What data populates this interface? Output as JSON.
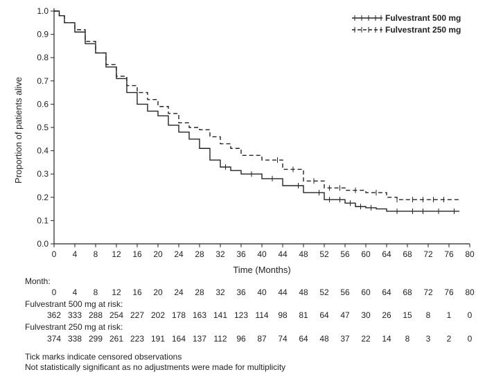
{
  "chart_data": {
    "type": "line",
    "title": "",
    "xlabel": "Time (Months)",
    "ylabel": "Proportion of patients alive",
    "xlim": [
      0,
      80
    ],
    "ylim": [
      0,
      1.0
    ],
    "x_ticks": [
      "0",
      "4",
      "8",
      "12",
      "16",
      "20",
      "24",
      "28",
      "32",
      "36",
      "40",
      "44",
      "48",
      "52",
      "56",
      "60",
      "64",
      "68",
      "72",
      "76",
      "80"
    ],
    "y_ticks": [
      "0.0",
      "0.1",
      "0.2",
      "0.3",
      "0.4",
      "0.5",
      "0.6",
      "0.7",
      "0.8",
      "0.9",
      "1.0"
    ],
    "legend_position": "top-right",
    "grid": false,
    "series": [
      {
        "name": "Fulvestrant 500 mg",
        "style": "solid",
        "x": [
          0,
          1,
          2,
          4,
          6,
          8,
          10,
          12,
          14,
          16,
          18,
          20,
          22,
          24,
          26,
          28,
          30,
          32,
          34,
          36,
          40,
          44,
          48,
          52,
          56,
          58,
          60,
          62,
          64,
          68,
          72,
          76,
          78
        ],
        "y": [
          1.0,
          0.98,
          0.95,
          0.91,
          0.86,
          0.82,
          0.76,
          0.71,
          0.65,
          0.6,
          0.57,
          0.55,
          0.51,
          0.48,
          0.45,
          0.41,
          0.36,
          0.33,
          0.315,
          0.3,
          0.28,
          0.25,
          0.22,
          0.19,
          0.175,
          0.16,
          0.155,
          0.15,
          0.14,
          0.14,
          0.14,
          0.14,
          0.14
        ],
        "censor_x": [
          33,
          38,
          42,
          47,
          51,
          53,
          55,
          57,
          59,
          61,
          66,
          69,
          71,
          74,
          77
        ]
      },
      {
        "name": "Fulvestrant 250 mg",
        "style": "dashed",
        "x": [
          0,
          1,
          2,
          4,
          6,
          8,
          10,
          12,
          14,
          16,
          18,
          20,
          22,
          24,
          26,
          28,
          30,
          32,
          34,
          36,
          40,
          44,
          48,
          52,
          56,
          60,
          64,
          66,
          68,
          72,
          76,
          78
        ],
        "y": [
          1.0,
          0.98,
          0.95,
          0.92,
          0.87,
          0.82,
          0.77,
          0.72,
          0.68,
          0.65,
          0.62,
          0.59,
          0.56,
          0.52,
          0.5,
          0.49,
          0.46,
          0.43,
          0.41,
          0.38,
          0.36,
          0.32,
          0.27,
          0.24,
          0.23,
          0.22,
          0.2,
          0.19,
          0.19,
          0.19,
          0.19,
          0.19
        ],
        "censor_x": [
          43,
          46,
          50,
          53,
          55,
          58,
          62,
          66,
          69,
          71,
          73,
          75
        ]
      }
    ],
    "risk_table": {
      "header": "Month:",
      "months": [
        "0",
        "4",
        "8",
        "12",
        "16",
        "20",
        "24",
        "28",
        "32",
        "36",
        "40",
        "44",
        "48",
        "52",
        "56",
        "60",
        "64",
        "68",
        "72",
        "76",
        "80"
      ],
      "rows": [
        {
          "label": "Fulvestrant 500 mg at risk:",
          "values": [
            "362",
            "333",
            "288",
            "254",
            "227",
            "202",
            "178",
            "163",
            "141",
            "123",
            "114",
            "98",
            "81",
            "64",
            "47",
            "30",
            "26",
            "15",
            "8",
            "1",
            "0"
          ]
        },
        {
          "label": "Fulvestrant 250 mg at risk:",
          "values": [
            "374",
            "338",
            "299",
            "261",
            "223",
            "191",
            "164",
            "137",
            "112",
            "96",
            "87",
            "74",
            "64",
            "48",
            "37",
            "22",
            "14",
            "8",
            "3",
            "2",
            "0"
          ]
        }
      ]
    }
  },
  "notes": [
    "Tick marks indicate censored observations",
    "Not statistically significant as no adjustments were made for multiplicity"
  ]
}
